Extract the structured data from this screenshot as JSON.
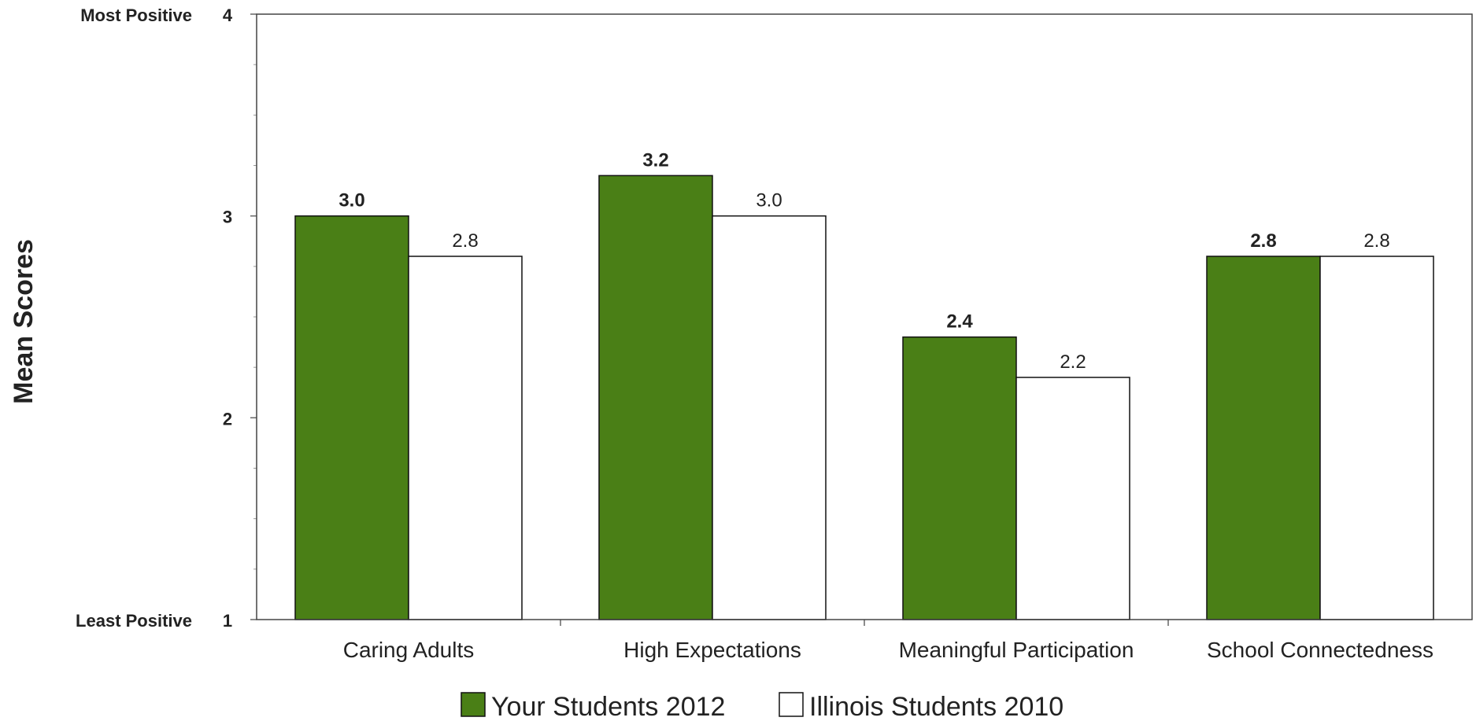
{
  "chart_data": {
    "type": "bar",
    "ylabel": "Mean Scores",
    "ylim": [
      1,
      4
    ],
    "y_ticks": [
      {
        "value": 4,
        "label": "4",
        "descriptor": "Most Positive"
      },
      {
        "value": 3,
        "label": "3",
        "descriptor": ""
      },
      {
        "value": 2,
        "label": "2",
        "descriptor": ""
      },
      {
        "value": 1,
        "label": "1",
        "descriptor": "Least Positive"
      }
    ],
    "categories": [
      "Caring Adults",
      "High Expectations",
      "Meaningful Participation",
      "School Connectedness"
    ],
    "series": [
      {
        "name": "Your Students 2012",
        "color": "#4a7f16",
        "values": [
          3.0,
          3.2,
          2.4,
          2.8
        ],
        "labels": [
          "3.0",
          "3.2",
          "2.4",
          "2.8"
        ],
        "label_weight": "bold"
      },
      {
        "name": "Illinois Students 2010",
        "color": "#ffffff",
        "values": [
          2.8,
          3.0,
          2.2,
          2.8
        ],
        "labels": [
          "2.8",
          "3.0",
          "2.2",
          "2.8"
        ],
        "label_weight": "normal"
      }
    ],
    "legend_position": "bottom",
    "grid": false
  }
}
